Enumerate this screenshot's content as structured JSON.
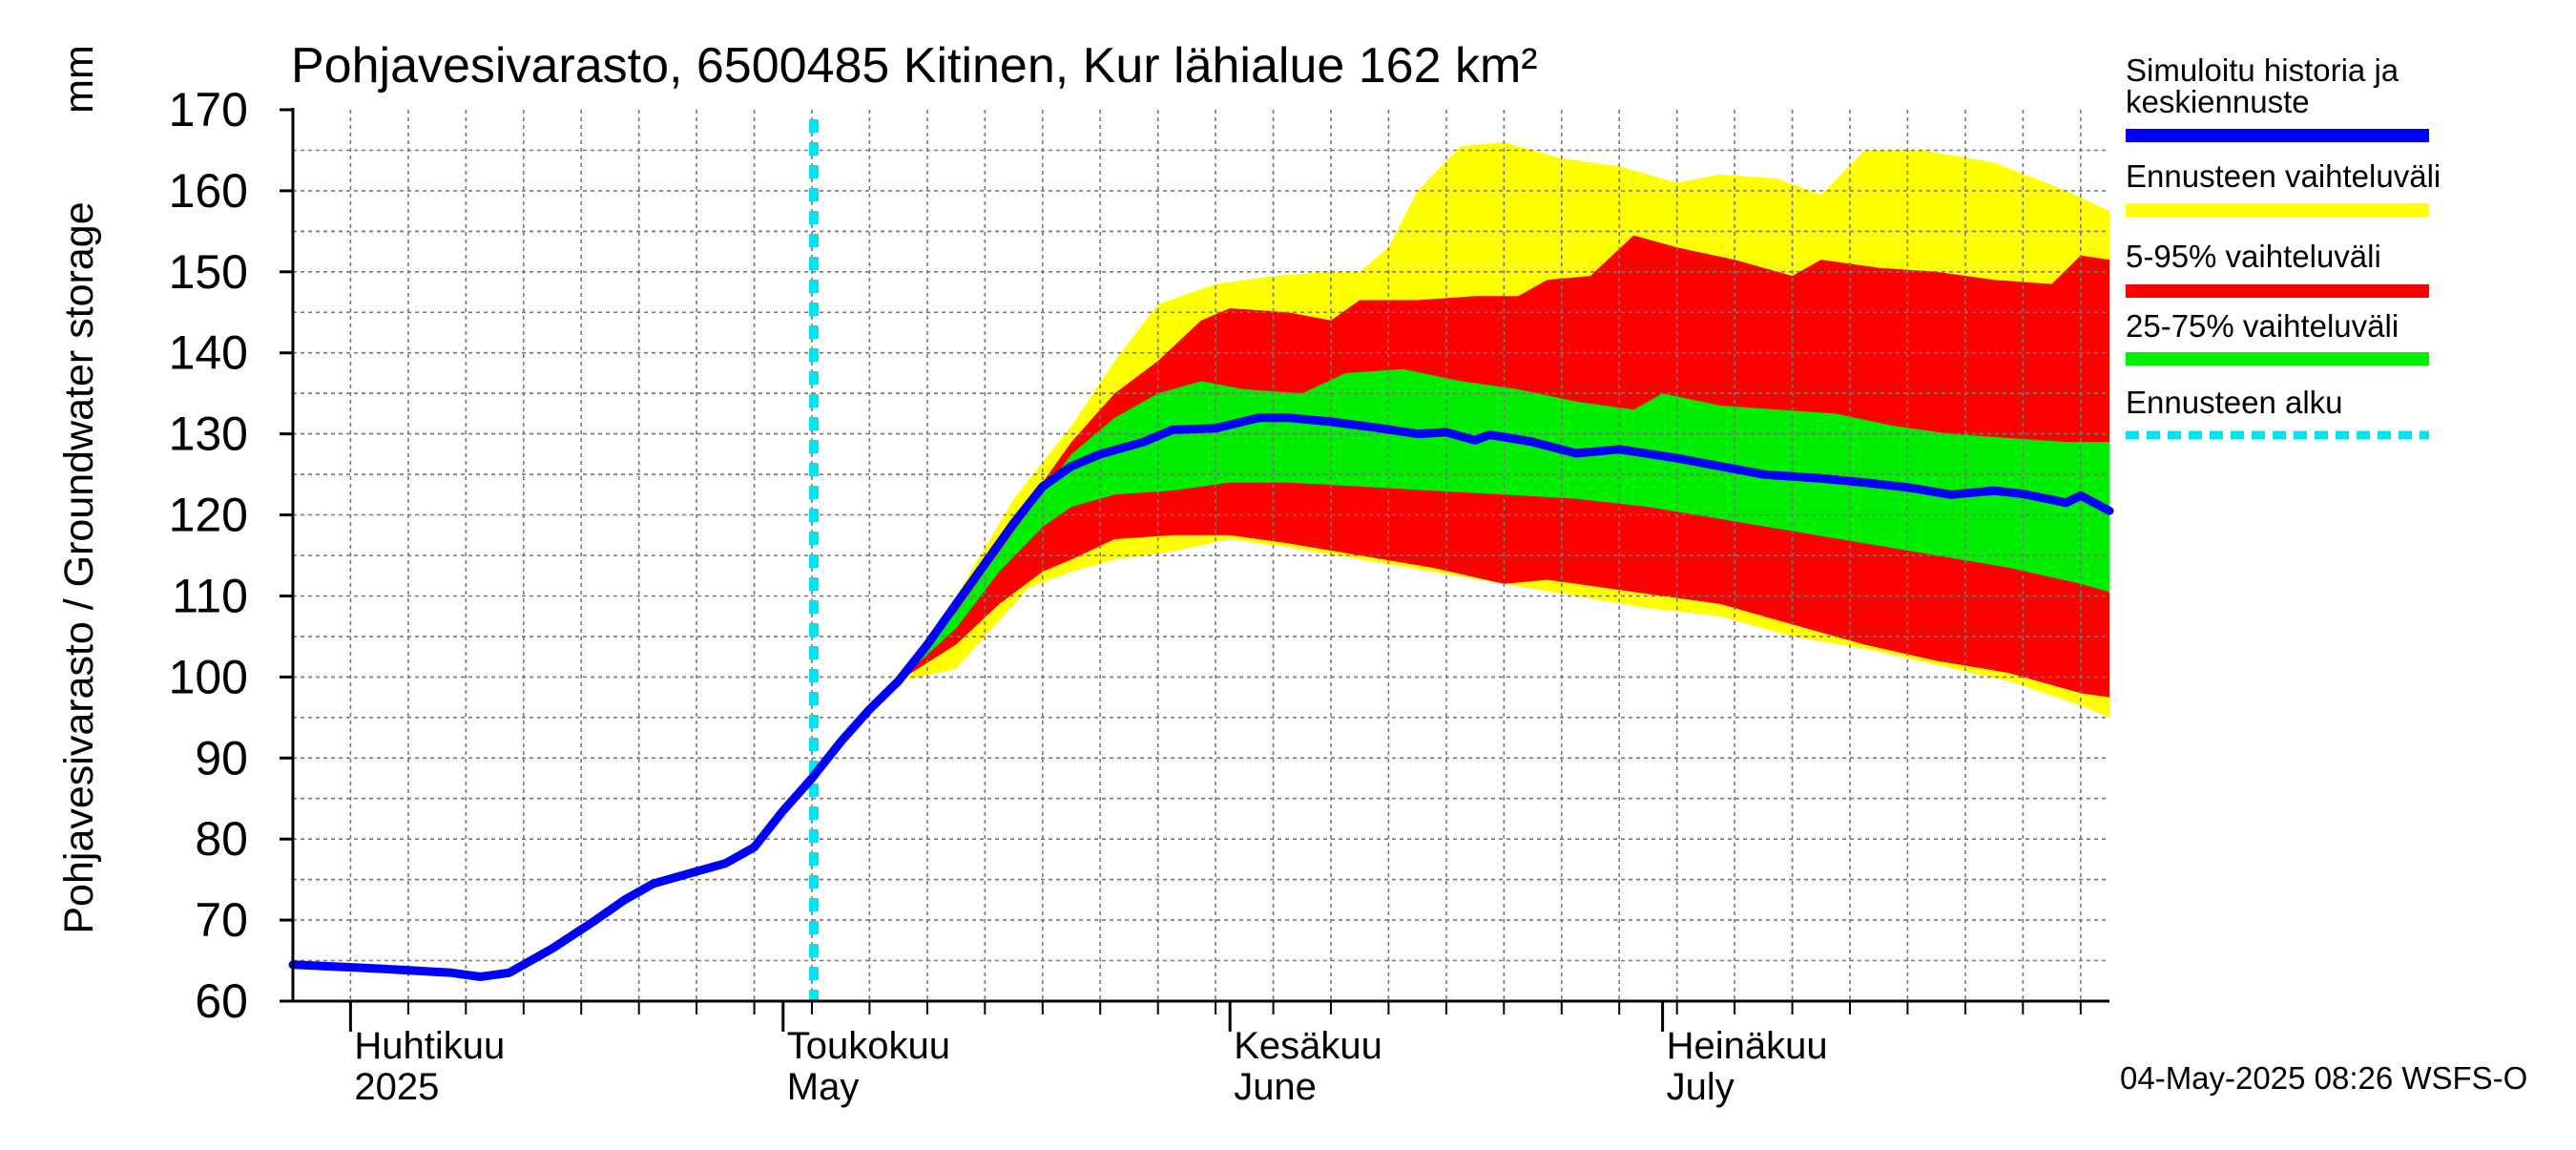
{
  "chart_data": {
    "type": "area",
    "title": "Pohjavesivarasto, 6500485 Kitinen, Kur lähialue 162 km²",
    "ylabel": "Pohjavesivarasto / Groundwater storage",
    "yunit": "mm",
    "ylim": [
      60,
      170
    ],
    "yticks": [
      60,
      70,
      80,
      90,
      100,
      110,
      120,
      130,
      140,
      150,
      160,
      170
    ],
    "xlim": [
      "2025-03-28",
      "2025-08-01"
    ],
    "x_tick_labels": [
      {
        "date": "2025-04-01",
        "line1": "Huhtikuu",
        "line2": "2025"
      },
      {
        "date": "2025-05-01",
        "line1": "Toukokuu",
        "line2": "May"
      },
      {
        "date": "2025-06-01",
        "line1": "Kesäkuu",
        "line2": "June"
      },
      {
        "date": "2025-07-01",
        "line1": "Heinäkuu",
        "line2": "July"
      }
    ],
    "grid": true,
    "legend_position": "right",
    "forecast_start": "2025-05-03",
    "timestamp": "04-May-2025 08:26 WSFS-O",
    "legend": [
      {
        "label": "Simuloitu historia ja keskiennuste",
        "line1": "Simuloitu historia ja",
        "line2": "keskiennuste",
        "color": "#0000ff",
        "style": "solid"
      },
      {
        "label": "Ennusteen vaihteluväli",
        "color": "#ffff00",
        "style": "solid"
      },
      {
        "label": "5-95% vaihteluväli",
        "color": "#ff0000",
        "style": "solid"
      },
      {
        "label": "25-75% vaihteluväli",
        "color": "#00ee00",
        "style": "solid"
      },
      {
        "label": "Ennusteen alku",
        "color": "#00e5ee",
        "style": "dashed"
      }
    ],
    "series": [
      {
        "name": "Simuloitu historia ja keskiennuste",
        "color": "#0000ff",
        "points": [
          [
            "2025-03-28",
            64.5
          ],
          [
            "2025-04-03",
            64.0
          ],
          [
            "2025-04-08",
            63.5
          ],
          [
            "2025-04-10",
            63.0
          ],
          [
            "2025-04-12",
            63.5
          ],
          [
            "2025-04-15",
            66.5
          ],
          [
            "2025-04-18",
            70.0
          ],
          [
            "2025-04-20",
            72.5
          ],
          [
            "2025-04-22",
            74.5
          ],
          [
            "2025-04-25",
            76.0
          ],
          [
            "2025-04-27",
            77.0
          ],
          [
            "2025-04-29",
            79.0
          ],
          [
            "2025-05-01",
            83.5
          ],
          [
            "2025-05-03",
            87.5
          ],
          [
            "2025-05-05",
            92.0
          ],
          [
            "2025-05-07",
            96.0
          ],
          [
            "2025-05-09",
            99.5
          ],
          [
            "2025-05-11",
            104.0
          ],
          [
            "2025-05-13",
            109.0
          ],
          [
            "2025-05-15",
            114.0
          ],
          [
            "2025-05-17",
            119.0
          ],
          [
            "2025-05-19",
            123.5
          ],
          [
            "2025-05-21",
            126.0
          ],
          [
            "2025-05-23",
            127.5
          ],
          [
            "2025-05-26",
            129.0
          ],
          [
            "2025-05-28",
            130.5
          ],
          [
            "2025-05-31",
            130.7
          ],
          [
            "2025-06-03",
            132.0
          ],
          [
            "2025-06-05",
            132.0
          ],
          [
            "2025-06-08",
            131.5
          ],
          [
            "2025-06-11",
            130.8
          ],
          [
            "2025-06-14",
            130.0
          ],
          [
            "2025-06-16",
            130.2
          ],
          [
            "2025-06-18",
            129.2
          ],
          [
            "2025-06-19",
            129.9
          ],
          [
            "2025-06-22",
            129.0
          ],
          [
            "2025-06-25",
            127.6
          ],
          [
            "2025-06-28",
            128.1
          ],
          [
            "2025-07-02",
            127.0
          ],
          [
            "2025-07-05",
            126.0
          ],
          [
            "2025-07-08",
            125.0
          ],
          [
            "2025-07-12",
            124.5
          ],
          [
            "2025-07-15",
            124.0
          ],
          [
            "2025-07-18",
            123.4
          ],
          [
            "2025-07-21",
            122.5
          ],
          [
            "2025-07-24",
            123.0
          ],
          [
            "2025-07-26",
            122.6
          ],
          [
            "2025-07-29",
            121.5
          ],
          [
            "2025-07-30",
            122.4
          ],
          [
            "2025-08-01",
            120.5
          ]
        ]
      }
    ],
    "bands": [
      {
        "name": "Ennusteen vaihteluväli",
        "color": "#ffff00",
        "upper": [
          [
            "2025-05-09",
            99.5
          ],
          [
            "2025-05-13",
            110.0
          ],
          [
            "2025-05-17",
            122.0
          ],
          [
            "2025-05-21",
            131.0
          ],
          [
            "2025-05-24",
            139.0
          ],
          [
            "2025-05-27",
            146.0
          ],
          [
            "2025-05-31",
            148.5
          ],
          [
            "2025-06-04",
            149.5
          ],
          [
            "2025-06-08",
            150.0
          ],
          [
            "2025-06-10",
            150.0
          ],
          [
            "2025-06-12",
            153.0
          ],
          [
            "2025-06-14",
            160.0
          ],
          [
            "2025-06-17",
            165.5
          ],
          [
            "2025-06-20",
            166.0
          ],
          [
            "2025-06-24",
            164.0
          ],
          [
            "2025-06-28",
            163.0
          ],
          [
            "2025-07-02",
            161.0
          ],
          [
            "2025-07-05",
            162.0
          ],
          [
            "2025-07-09",
            161.5
          ],
          [
            "2025-07-12",
            159.5
          ],
          [
            "2025-07-15",
            165.0
          ],
          [
            "2025-07-19",
            165.0
          ],
          [
            "2025-07-24",
            163.5
          ],
          [
            "2025-07-29",
            160.0
          ],
          [
            "2025-08-01",
            157.5
          ]
        ],
        "lower": [
          [
            "2025-05-09",
            99.5
          ],
          [
            "2025-05-13",
            101.0
          ],
          [
            "2025-05-15",
            105.0
          ],
          [
            "2025-05-18",
            111.0
          ],
          [
            "2025-05-21",
            113.0
          ],
          [
            "2025-05-24",
            114.5
          ],
          [
            "2025-05-28",
            115.5
          ],
          [
            "2025-06-01",
            117.0
          ],
          [
            "2025-06-05",
            116.0
          ],
          [
            "2025-06-10",
            114.5
          ],
          [
            "2025-06-15",
            113.0
          ],
          [
            "2025-06-20",
            111.5
          ],
          [
            "2025-06-25",
            110.0
          ],
          [
            "2025-06-30",
            108.5
          ],
          [
            "2025-07-05",
            107.5
          ],
          [
            "2025-07-10",
            105.0
          ],
          [
            "2025-07-15",
            103.5
          ],
          [
            "2025-07-20",
            101.5
          ],
          [
            "2025-07-25",
            99.5
          ],
          [
            "2025-07-30",
            96.5
          ],
          [
            "2025-08-01",
            95.0
          ]
        ]
      },
      {
        "name": "5-95% vaihteluväli",
        "color": "#ff0000",
        "upper": [
          [
            "2025-05-09",
            99.5
          ],
          [
            "2025-05-13",
            109.0
          ],
          [
            "2025-05-17",
            119.0
          ],
          [
            "2025-05-21",
            129.0
          ],
          [
            "2025-05-24",
            135.0
          ],
          [
            "2025-05-27",
            139.0
          ],
          [
            "2025-05-30",
            144.0
          ],
          [
            "2025-06-01",
            145.5
          ],
          [
            "2025-06-05",
            145.0
          ],
          [
            "2025-06-08",
            144.0
          ],
          [
            "2025-06-10",
            146.5
          ],
          [
            "2025-06-14",
            146.5
          ],
          [
            "2025-06-18",
            147.0
          ],
          [
            "2025-06-21",
            147.0
          ],
          [
            "2025-06-23",
            149.0
          ],
          [
            "2025-06-26",
            149.5
          ],
          [
            "2025-06-29",
            154.5
          ],
          [
            "2025-07-02",
            153.0
          ],
          [
            "2025-07-06",
            151.5
          ],
          [
            "2025-07-10",
            149.5
          ],
          [
            "2025-07-12",
            151.5
          ],
          [
            "2025-07-16",
            150.5
          ],
          [
            "2025-07-20",
            150.0
          ],
          [
            "2025-07-24",
            149.0
          ],
          [
            "2025-07-28",
            148.5
          ],
          [
            "2025-07-30",
            152.0
          ],
          [
            "2025-08-01",
            151.5
          ]
        ],
        "lower": [
          [
            "2025-05-09",
            99.5
          ],
          [
            "2025-05-13",
            104.0
          ],
          [
            "2025-05-16",
            109.0
          ],
          [
            "2025-05-19",
            113.0
          ],
          [
            "2025-05-21",
            114.5
          ],
          [
            "2025-05-24",
            117.0
          ],
          [
            "2025-05-28",
            117.5
          ],
          [
            "2025-06-01",
            117.5
          ],
          [
            "2025-06-05",
            116.5
          ],
          [
            "2025-06-10",
            115.0
          ],
          [
            "2025-06-15",
            113.5
          ],
          [
            "2025-06-20",
            111.5
          ],
          [
            "2025-06-23",
            112.0
          ],
          [
            "2025-06-27",
            111.0
          ],
          [
            "2025-07-01",
            110.0
          ],
          [
            "2025-07-05",
            109.0
          ],
          [
            "2025-07-10",
            106.5
          ],
          [
            "2025-07-15",
            104.0
          ],
          [
            "2025-07-20",
            102.0
          ],
          [
            "2025-07-25",
            100.5
          ],
          [
            "2025-07-30",
            98.0
          ],
          [
            "2025-08-01",
            97.5
          ]
        ]
      },
      {
        "name": "25-75% vaihteluväli",
        "color": "#00ee00",
        "upper": [
          [
            "2025-05-09",
            99.5
          ],
          [
            "2025-05-13",
            108.0
          ],
          [
            "2025-05-17",
            118.0
          ],
          [
            "2025-05-21",
            127.5
          ],
          [
            "2025-05-24",
            132.0
          ],
          [
            "2025-05-27",
            135.0
          ],
          [
            "2025-05-30",
            136.5
          ],
          [
            "2025-06-02",
            135.5
          ],
          [
            "2025-06-06",
            135.0
          ],
          [
            "2025-06-09",
            137.5
          ],
          [
            "2025-06-13",
            138.0
          ],
          [
            "2025-06-17",
            136.5
          ],
          [
            "2025-06-21",
            135.5
          ],
          [
            "2025-06-25",
            134.0
          ],
          [
            "2025-06-29",
            133.0
          ],
          [
            "2025-07-01",
            135.0
          ],
          [
            "2025-07-05",
            133.5
          ],
          [
            "2025-07-09",
            133.0
          ],
          [
            "2025-07-13",
            132.5
          ],
          [
            "2025-07-17",
            131.0
          ],
          [
            "2025-07-21",
            130.0
          ],
          [
            "2025-07-25",
            129.5
          ],
          [
            "2025-07-29",
            129.0
          ],
          [
            "2025-08-01",
            129.0
          ]
        ],
        "lower": [
          [
            "2025-05-09",
            99.5
          ],
          [
            "2025-05-13",
            106.0
          ],
          [
            "2025-05-16",
            113.0
          ],
          [
            "2025-05-19",
            118.5
          ],
          [
            "2025-05-21",
            121.0
          ],
          [
            "2025-05-24",
            122.5
          ],
          [
            "2025-05-28",
            123.0
          ],
          [
            "2025-06-01",
            124.0
          ],
          [
            "2025-06-05",
            124.0
          ],
          [
            "2025-06-10",
            123.5
          ],
          [
            "2025-06-15",
            123.0
          ],
          [
            "2025-06-20",
            122.5
          ],
          [
            "2025-06-25",
            122.0
          ],
          [
            "2025-06-30",
            121.0
          ],
          [
            "2025-07-05",
            119.5
          ],
          [
            "2025-07-10",
            118.0
          ],
          [
            "2025-07-15",
            116.5
          ],
          [
            "2025-07-20",
            115.0
          ],
          [
            "2025-07-25",
            113.5
          ],
          [
            "2025-07-30",
            111.5
          ],
          [
            "2025-08-01",
            110.5
          ]
        ]
      }
    ]
  }
}
